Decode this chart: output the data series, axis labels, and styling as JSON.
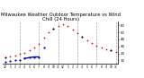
{
  "title": "Milwaukee Weather Outdoor Temperature vs Wind Chill (24 Hours)",
  "title_fontsize": 3.8,
  "background_color": "#ffffff",
  "hours": [
    0,
    1,
    2,
    3,
    4,
    5,
    6,
    7,
    8,
    9,
    10,
    11,
    12,
    13,
    14,
    15,
    16,
    17,
    18,
    19,
    20,
    21,
    22,
    23
  ],
  "temp": [
    14,
    16,
    17,
    19,
    21,
    24,
    28,
    34,
    42,
    50,
    55,
    59,
    61,
    59,
    54,
    49,
    44,
    39,
    35,
    31,
    28,
    26,
    24,
    22
  ],
  "wind_chill": [
    8,
    9,
    10,
    11,
    13,
    14,
    15,
    15,
    28,
    50,
    55,
    59,
    61,
    59,
    54,
    49,
    44,
    39,
    35,
    31,
    28,
    26,
    24,
    22
  ],
  "black_temp_indices": [
    0,
    10,
    16,
    22
  ],
  "ylim": [
    5,
    65
  ],
  "yticks": [
    10,
    20,
    30,
    40,
    50,
    60
  ],
  "ytick_labels": [
    "10",
    "20",
    "30",
    "40",
    "50",
    "60"
  ],
  "xtick_positions": [
    0,
    1,
    2,
    3,
    4,
    5,
    6,
    7,
    8,
    9,
    10,
    11,
    12,
    13,
    14,
    15,
    16,
    17,
    18,
    19,
    20,
    21,
    22,
    23
  ],
  "xtick_labels": [
    "12",
    "1",
    "2",
    "3",
    "4",
    "5",
    "6",
    "7",
    "8",
    "9",
    "10",
    "11",
    "12",
    "1",
    "2",
    "3",
    "4",
    "5",
    "6",
    "7",
    "8",
    "9",
    "10",
    "11"
  ],
  "vlines": [
    3,
    7,
    11,
    15,
    19,
    23
  ],
  "red_color": "#cc0000",
  "blue_color": "#0000cc",
  "black_color": "#000000",
  "grid_color": "#888888"
}
